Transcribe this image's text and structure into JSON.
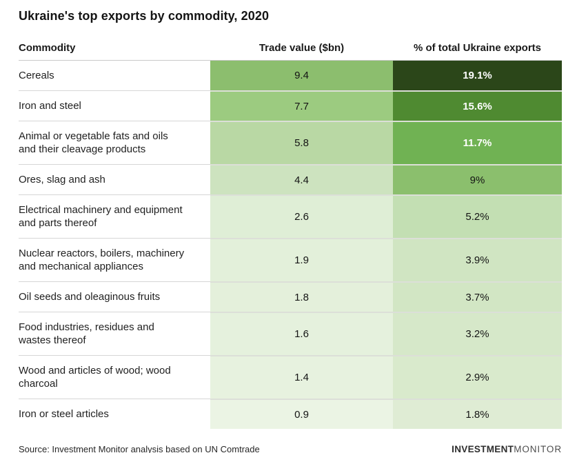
{
  "title": "Ukraine's top exports by commodity, 2020",
  "table": {
    "headers": {
      "commodity": "Commodity",
      "trade_value": "Trade value ($bn)",
      "percent": "% of total Ukraine exports"
    },
    "rows": [
      {
        "commodity": "Cereals",
        "trade_value": "9.4",
        "trade_bg": "#8cbe6e",
        "pct": "19.1%",
        "pct_bg": "#2b4619",
        "pct_white_text": true
      },
      {
        "commodity": "Iron and steel",
        "trade_value": "7.7",
        "trade_bg": "#9ccb80",
        "pct": "15.6%",
        "pct_bg": "#4f8a31",
        "pct_white_text": true
      },
      {
        "commodity": "Animal or vegetable fats and oils and their cleavage products",
        "trade_value": "5.8",
        "trade_bg": "#b9d8a4",
        "pct": "11.7%",
        "pct_bg": "#70b253",
        "pct_white_text": true
      },
      {
        "commodity": "Ores, slag and ash",
        "trade_value": "4.4",
        "trade_bg": "#cde3bf",
        "pct": "9%",
        "pct_bg": "#8bbf6d",
        "pct_white_text": false
      },
      {
        "commodity": "Electrical machinery and equipment and parts thereof",
        "trade_value": "2.6",
        "trade_bg": "#dfeed6",
        "pct": "5.2%",
        "pct_bg": "#c3dfb3",
        "pct_white_text": false
      },
      {
        "commodity": "Nuclear reactors, boilers, machinery and mechanical appliances",
        "trade_value": "1.9",
        "trade_bg": "#e3f0da",
        "pct": "3.9%",
        "pct_bg": "#d0e5c2",
        "pct_white_text": false
      },
      {
        "commodity": "Oil seeds and oleaginous fruits",
        "trade_value": "1.8",
        "trade_bg": "#e4f0db",
        "pct": "3.7%",
        "pct_bg": "#d2e6c4",
        "pct_white_text": false
      },
      {
        "commodity": "Food industries, residues and wastes thereof",
        "trade_value": "1.6",
        "trade_bg": "#e5f1dd",
        "pct": "3.2%",
        "pct_bg": "#d6e8c9",
        "pct_white_text": false
      },
      {
        "commodity": "Wood and articles of wood; wood charcoal",
        "trade_value": "1.4",
        "trade_bg": "#e7f2df",
        "pct": "2.9%",
        "pct_bg": "#d9eacc",
        "pct_white_text": false
      },
      {
        "commodity": "Iron or steel articles",
        "trade_value": "0.9",
        "trade_bg": "#ebf4e4",
        "pct": "1.8%",
        "pct_bg": "#dfecd4",
        "pct_white_text": false
      }
    ]
  },
  "footer": {
    "source": "Source: Investment Monitor analysis based on UN Comtrade",
    "logo_bold": "INVESTMENT",
    "logo_light": "MONITOR"
  },
  "colors": {
    "scale_min": "#ebf4e4",
    "scale_max": "#2b4619",
    "white_cell_text": "#ffffff",
    "dark_cell_text": "#141414"
  },
  "chart_data": {
    "type": "table",
    "title": "Ukraine's top exports by commodity, 2020",
    "columns": [
      "Commodity",
      "Trade value ($bn)",
      "% of total Ukraine exports"
    ],
    "rows": [
      [
        "Cereals",
        9.4,
        19.1
      ],
      [
        "Iron and steel",
        7.7,
        15.6
      ],
      [
        "Animal or vegetable fats and oils and their cleavage products",
        5.8,
        11.7
      ],
      [
        "Ores, slag and ash",
        4.4,
        9
      ],
      [
        "Electrical machinery and equipment and parts thereof",
        2.6,
        5.2
      ],
      [
        "Nuclear reactors, boilers, machinery and mechanical appliances",
        1.9,
        3.9
      ],
      [
        "Oil seeds and oleaginous fruits",
        1.8,
        3.7
      ],
      [
        "Food industries, residues and wastes thereof",
        1.6,
        3.2
      ],
      [
        "Wood and articles of wood; wood charcoal",
        1.4,
        2.9
      ],
      [
        "Iron or steel articles",
        0.9,
        1.8
      ]
    ],
    "cell_shading": "sequential green heatmap scaled to value, light (#ebf4e4) to dark (#2b4619)",
    "source": "Source: Investment Monitor analysis based on UN Comtrade"
  }
}
